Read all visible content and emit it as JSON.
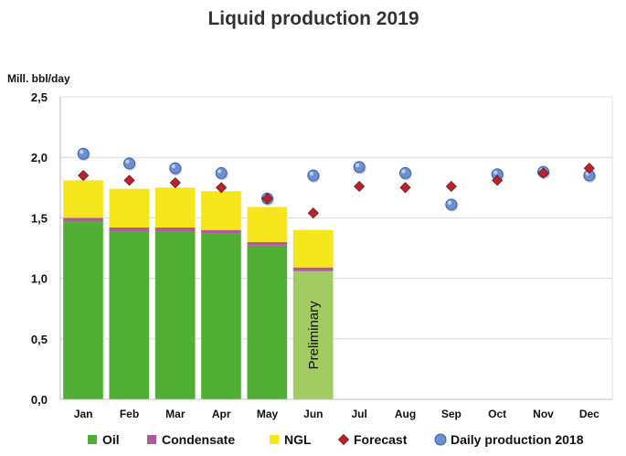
{
  "chart_data": {
    "type": "bar",
    "title": "Liquid production 2019",
    "ylabel": "Mill. bbl/day",
    "xlabel": "",
    "ylim": [
      0,
      2.5
    ],
    "yticks": [
      "0,0",
      "0,5",
      "1,0",
      "1,5",
      "2,0",
      "2,5"
    ],
    "ytick_values": [
      0,
      0.5,
      1.0,
      1.5,
      2.0,
      2.5
    ],
    "categories": [
      "Jan",
      "Feb",
      "Mar",
      "Apr",
      "May",
      "Jun",
      "Jul",
      "Aug",
      "Sep",
      "Oct",
      "Nov",
      "Dec"
    ],
    "series": [
      {
        "name": "Oil",
        "kind": "stacked-bar",
        "color": "#4fae33",
        "values": [
          1.47,
          1.39,
          1.39,
          1.37,
          1.27,
          1.06,
          null,
          null,
          null,
          null,
          null,
          null
        ]
      },
      {
        "name": "Condensate",
        "kind": "stacked-bar",
        "color": "#b05a9e",
        "values": [
          0.03,
          0.03,
          0.03,
          0.03,
          0.03,
          0.03,
          null,
          null,
          null,
          null,
          null,
          null
        ]
      },
      {
        "name": "NGL",
        "kind": "stacked-bar",
        "color": "#f5e61c",
        "values": [
          0.31,
          0.32,
          0.33,
          0.32,
          0.29,
          0.31,
          null,
          null,
          null,
          null,
          null,
          null
        ]
      },
      {
        "name": "Forecast",
        "kind": "marker",
        "shape": "diamond",
        "color": "#b8242e",
        "values": [
          1.85,
          1.81,
          1.79,
          1.75,
          1.66,
          1.54,
          1.76,
          1.75,
          1.76,
          1.81,
          1.87,
          1.91
        ]
      },
      {
        "name": "Daily production 2018",
        "kind": "marker",
        "shape": "circle",
        "color": "#6d8fd0",
        "values": [
          2.03,
          1.95,
          1.91,
          1.87,
          1.66,
          1.85,
          1.92,
          1.87,
          1.61,
          1.86,
          1.88,
          1.85
        ]
      }
    ],
    "preliminary_month": "Jun",
    "preliminary_label": "Preliminary",
    "preliminary_color": "#a2cb62",
    "grid": true,
    "legend_position": "bottom"
  }
}
